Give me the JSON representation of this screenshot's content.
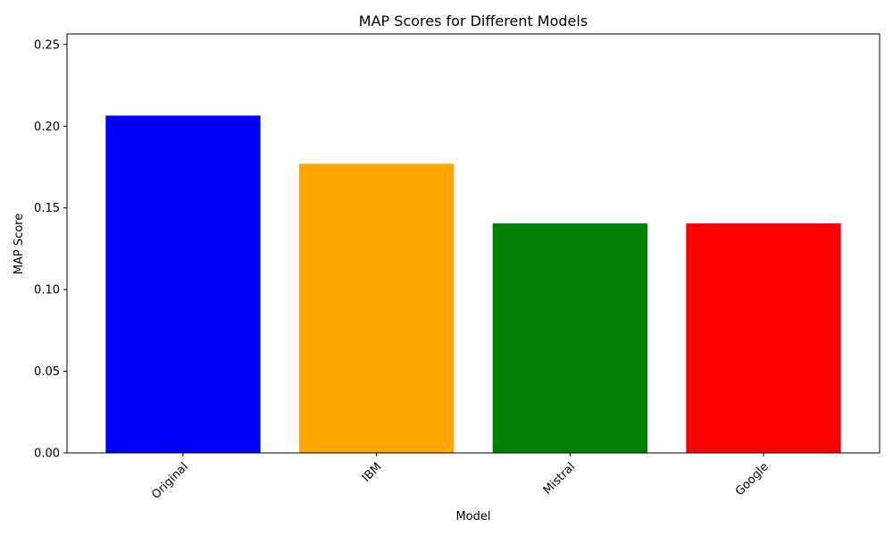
{
  "chart_data": {
    "type": "bar",
    "title": "MAP Scores for Different Models",
    "xlabel": "Model",
    "ylabel": "MAP Score",
    "categories": [
      "Original",
      "IBM",
      "Mistral",
      "Google"
    ],
    "values": [
      0.2065,
      0.177,
      0.1405,
      0.1405
    ],
    "colors": [
      "#0000ff",
      "#ffa500",
      "#008000",
      "#ff0000"
    ],
    "ylim": [
      0,
      0.2565
    ],
    "yticks": [
      0.0,
      0.05,
      0.1,
      0.15,
      0.2,
      0.25
    ],
    "ytick_labels": [
      "0.00",
      "0.05",
      "0.10",
      "0.15",
      "0.20",
      "0.25"
    ],
    "xtick_rotation_deg": 45,
    "grid": false,
    "legend": "none"
  }
}
